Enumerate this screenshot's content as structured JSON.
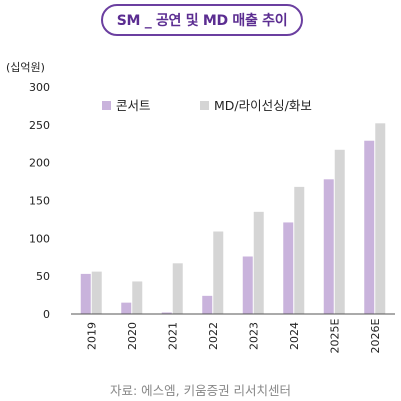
{
  "chart_data": {
    "type": "bar",
    "title": "SM _ 공연 및 MD 매출 추이",
    "ylabel": "(십억원)",
    "xlabel": "",
    "categories": [
      "2019",
      "2020",
      "2021",
      "2022",
      "2023",
      "2024",
      "2025E",
      "2026E"
    ],
    "series": [
      {
        "name": "콘서트",
        "color": "#c9b3dc",
        "values": [
          53,
          15,
          2,
          24,
          76,
          121,
          178,
          229
        ]
      },
      {
        "name": "MD/라이선싱/화보",
        "color": "#d5d5d5",
        "values": [
          56,
          43,
          67,
          109,
          135,
          168,
          217,
          252
        ]
      }
    ],
    "ylim": [
      0,
      300
    ],
    "yticks": [
      0,
      50,
      100,
      150,
      200,
      250,
      300
    ],
    "grid": false,
    "legend_position": "top-left"
  },
  "source": "자료: 에스엠, 키움증권 리서치센터"
}
